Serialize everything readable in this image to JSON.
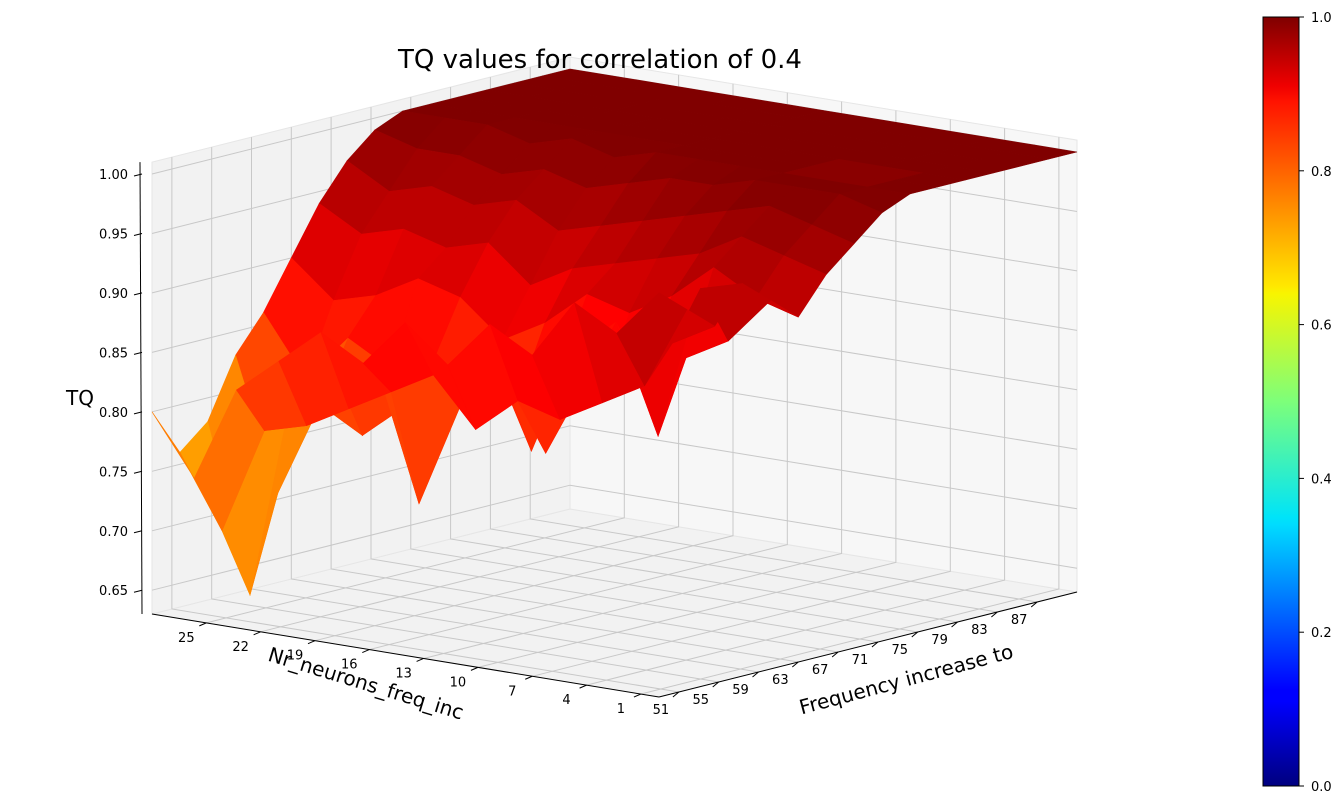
{
  "chart_data": {
    "type": "surface3d",
    "title": "TQ values for correlation of 0.4",
    "xlabel": "Frequency increase to",
    "ylabel": "Nr_neurons_freq_inc",
    "zlabel": "TQ",
    "x_ticks": [
      "51",
      "55",
      "59",
      "63",
      "67",
      "71",
      "75",
      "79",
      "83",
      "87"
    ],
    "y_ticks": [
      "25",
      "22",
      "19",
      "16",
      "13",
      "10",
      "7",
      "4",
      "1"
    ],
    "z_ticks": [
      "0.65",
      "0.70",
      "0.75",
      "0.80",
      "0.85",
      "0.90",
      "0.95",
      "1.00"
    ],
    "x_range": [
      49,
      91
    ],
    "y_range": [
      0,
      28
    ],
    "z_range": [
      0.63,
      1.0
    ],
    "colormap": "jet",
    "colorbar": {
      "ticks": [
        "0.0",
        "0.2",
        "0.4",
        "0.6",
        "0.8",
        "1.0"
      ],
      "range": [
        0,
        1
      ]
    },
    "grid": true,
    "surface": {
      "x_start": 49,
      "x_step": 2.8,
      "y_start": 0,
      "y_step": 2.3333,
      "x_count": 16,
      "y_count": 13,
      "z": [
        [
          0.97,
          0.95,
          0.93,
          0.96,
          0.94,
          0.92,
          0.95,
          0.97,
          0.99,
          1.0,
          1.0,
          1.0,
          1.0,
          1.0,
          1.0,
          1.0
        ],
        [
          0.93,
          0.88,
          0.91,
          0.95,
          0.9,
          0.93,
          0.96,
          0.98,
          1.0,
          1.0,
          1.0,
          1.0,
          1.0,
          1.0,
          1.0,
          1.0
        ],
        [
          0.95,
          0.86,
          0.89,
          0.82,
          0.88,
          0.95,
          0.97,
          0.99,
          1.0,
          1.0,
          0.96,
          1.0,
          1.0,
          1.0,
          1.0,
          1.0
        ],
        [
          0.9,
          0.84,
          0.87,
          0.91,
          0.86,
          0.92,
          0.95,
          0.98,
          1.0,
          1.0,
          1.0,
          1.0,
          1.0,
          1.0,
          1.0,
          1.0
        ],
        [
          0.92,
          0.85,
          0.8,
          0.88,
          0.84,
          0.9,
          0.94,
          0.97,
          0.99,
          1.0,
          1.0,
          1.0,
          1.0,
          1.0,
          1.0,
          1.0
        ],
        [
          0.88,
          0.82,
          0.86,
          0.79,
          0.85,
          0.91,
          0.93,
          0.96,
          0.99,
          1.0,
          1.0,
          1.0,
          1.0,
          1.0,
          1.0,
          1.0
        ],
        [
          0.91,
          0.86,
          0.83,
          0.87,
          0.82,
          0.88,
          0.92,
          0.95,
          0.98,
          1.0,
          1.0,
          1.0,
          1.0,
          1.0,
          1.0,
          1.0
        ],
        [
          0.87,
          0.84,
          0.74,
          0.85,
          0.8,
          0.86,
          0.9,
          0.94,
          0.97,
          0.99,
          1.0,
          1.0,
          1.0,
          1.0,
          1.0,
          1.0
        ],
        [
          0.89,
          0.82,
          0.85,
          0.81,
          0.84,
          0.89,
          0.93,
          0.96,
          0.98,
          1.0,
          1.0,
          1.0,
          1.0,
          1.0,
          1.0,
          1.0
        ],
        [
          0.86,
          0.8,
          0.84,
          0.78,
          0.83,
          0.9,
          0.92,
          0.95,
          0.97,
          0.99,
          1.0,
          1.0,
          1.0,
          1.0,
          1.0,
          1.0
        ],
        [
          0.83,
          0.79,
          0.82,
          0.8,
          0.85,
          0.88,
          0.93,
          0.96,
          0.98,
          1.0,
          1.0,
          1.0,
          1.0,
          1.0,
          1.0,
          1.0
        ],
        [
          0.75,
          0.7,
          0.64,
          0.72,
          0.81,
          0.87,
          0.92,
          0.95,
          0.98,
          1.0,
          1.0,
          1.0,
          1.0,
          1.0,
          1.0,
          1.0
        ],
        [
          0.8,
          0.76,
          0.78,
          0.83,
          0.86,
          0.9,
          0.94,
          0.97,
          0.99,
          1.0,
          1.0,
          1.0,
          1.0,
          1.0,
          1.0,
          1.0
        ]
      ]
    }
  }
}
